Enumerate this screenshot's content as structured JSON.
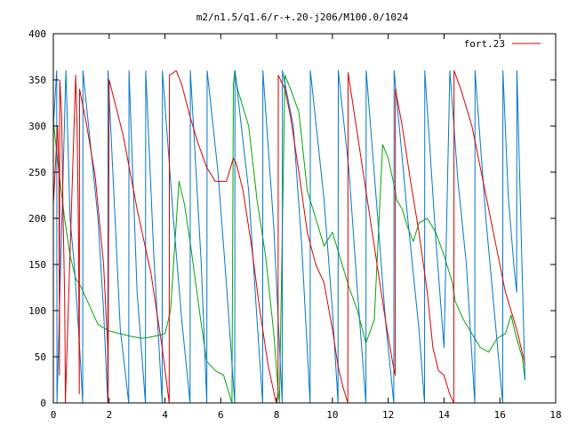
{
  "chart_data": {
    "type": "line",
    "title": "m2/n1.5/q1.6/r-+.20-j206/M100.0/1024",
    "xlabel": "",
    "ylabel": "",
    "xlim": [
      0,
      18
    ],
    "ylim": [
      0,
      400
    ],
    "x_ticks": [
      0,
      2,
      4,
      6,
      8,
      10,
      12,
      14,
      16,
      18
    ],
    "y_ticks": [
      0,
      50,
      100,
      150,
      200,
      250,
      300,
      350,
      400
    ],
    "grid": false,
    "legend": {
      "position": "top-right",
      "entries": [
        {
          "label": "fort.23",
          "color": "#dd0000"
        }
      ]
    },
    "colors": {
      "red": "#dd0000",
      "green": "#00aa00",
      "blue": "#0077cc"
    },
    "series": [
      {
        "name": "fort.23",
        "color": "#dd0000",
        "x": [
          0.0,
          0.15,
          0.2,
          0.22,
          0.23,
          0.3,
          0.35,
          0.4,
          0.42,
          0.43,
          0.8,
          0.85,
          0.9,
          0.93,
          0.94,
          1.2,
          1.5,
          1.8,
          1.95,
          1.96,
          2.0,
          2.5,
          3.0,
          3.5,
          3.9,
          4.15,
          4.16,
          4.4,
          4.6,
          4.9,
          5.2,
          5.5,
          5.8,
          6.2,
          6.45,
          6.55,
          6.8,
          7.1,
          7.4,
          7.7,
          7.95,
          8.0,
          8.05,
          8.06,
          8.3,
          8.5,
          8.8,
          9.1,
          9.4,
          9.7,
          10.0,
          10.2,
          10.4,
          10.55,
          10.56,
          10.7,
          11.0,
          11.3,
          11.6,
          11.9,
          12.15,
          12.25,
          12.26,
          12.5,
          12.8,
          13.1,
          13.4,
          13.6,
          13.8,
          14.0,
          14.2,
          14.35,
          14.36,
          14.6,
          15.0,
          15.4,
          15.8,
          16.2,
          16.6,
          16.9
        ],
        "y": [
          215,
          300,
          250,
          30,
          350,
          310,
          200,
          120,
          60,
          0,
          355,
          300,
          180,
          10,
          340,
          300,
          245,
          150,
          60,
          0,
          350,
          290,
          210,
          140,
          60,
          0,
          355,
          360,
          345,
          310,
          280,
          255,
          240,
          240,
          265,
          260,
          230,
          170,
          100,
          40,
          5,
          0,
          10,
          355,
          340,
          310,
          250,
          185,
          150,
          130,
          80,
          40,
          15,
          0,
          358,
          330,
          270,
          210,
          150,
          90,
          45,
          30,
          340,
          300,
          240,
          185,
          120,
          60,
          35,
          30,
          10,
          0,
          360,
          340,
          300,
          240,
          180,
          120,
          80,
          42
        ]
      },
      {
        "name": "",
        "color": "#00aa00",
        "x": [
          0.0,
          0.2,
          0.4,
          0.6,
          0.8,
          1.0,
          1.3,
          1.6,
          2.0,
          2.4,
          2.8,
          3.2,
          3.6,
          4.0,
          4.2,
          4.35,
          4.5,
          4.7,
          4.9,
          5.1,
          5.3,
          5.5,
          5.8,
          6.1,
          6.3,
          6.4,
          6.45,
          6.5,
          6.6,
          6.8,
          7.0,
          7.3,
          7.6,
          7.9,
          8.05,
          8.1,
          8.3,
          8.5,
          8.8,
          9.1,
          9.4,
          9.7,
          10.0,
          10.3,
          10.6,
          10.9,
          11.2,
          11.5,
          11.8,
          12.0,
          12.25,
          12.3,
          12.5,
          12.7,
          12.9,
          13.1,
          13.4,
          13.7,
          14.0,
          14.3,
          14.4,
          14.7,
          15.0,
          15.3,
          15.6,
          15.9,
          16.2,
          16.4,
          16.6,
          16.8,
          16.9
        ],
        "y": [
          305,
          250,
          200,
          160,
          135,
          125,
          105,
          85,
          78,
          75,
          72,
          70,
          72,
          75,
          100,
          170,
          240,
          215,
          175,
          130,
          85,
          45,
          35,
          30,
          10,
          0,
          345,
          360,
          340,
          320,
          300,
          220,
          160,
          75,
          15,
          0,
          355,
          340,
          315,
          230,
          200,
          170,
          185,
          155,
          125,
          100,
          65,
          90,
          280,
          265,
          230,
          220,
          210,
          190,
          175,
          195,
          200,
          185,
          160,
          130,
          110,
          90,
          75,
          60,
          55,
          70,
          75,
          95,
          70,
          50,
          25
        ]
      },
      {
        "name": "",
        "color": "#0077cc",
        "x": [
          0.0,
          0.12,
          0.13,
          0.45,
          0.6,
          0.75,
          0.9,
          1.0,
          1.05,
          1.06,
          1.6,
          1.8,
          1.95,
          1.96,
          2.4,
          2.7,
          2.71,
          3.0,
          3.3,
          3.31,
          3.6,
          3.9,
          3.91,
          4.3,
          4.6,
          4.9,
          4.91,
          5.3,
          5.5,
          5.51,
          5.9,
          6.2,
          6.5,
          6.51,
          7.0,
          7.3,
          7.5,
          7.51,
          7.9,
          8.2,
          8.21,
          8.6,
          8.9,
          9.2,
          9.21,
          9.7,
          10.0,
          10.2,
          10.21,
          10.6,
          10.9,
          11.2,
          11.21,
          11.6,
          11.9,
          12.2,
          12.21,
          12.7,
          13.1,
          13.3,
          13.31,
          13.7,
          14.0,
          14.21,
          14.5,
          14.8,
          15.1,
          15.11,
          15.5,
          15.8,
          16.1,
          16.11,
          16.3,
          16.5,
          16.6,
          16.61,
          16.9
        ],
        "y": [
          300,
          360,
          0,
          360,
          200,
          150,
          80,
          30,
          0,
          360,
          200,
          100,
          0,
          360,
          80,
          0,
          360,
          120,
          0,
          360,
          160,
          0,
          360,
          200,
          90,
          0,
          360,
          150,
          0,
          360,
          250,
          130,
          0,
          360,
          230,
          90,
          0,
          360,
          190,
          0,
          360,
          300,
          170,
          0,
          360,
          220,
          100,
          0,
          360,
          250,
          120,
          0,
          360,
          210,
          90,
          0,
          360,
          200,
          80,
          0,
          360,
          180,
          60,
          360,
          240,
          150,
          0,
          360,
          200,
          100,
          0,
          360,
          225,
          150,
          120,
          360,
          25
        ]
      }
    ]
  }
}
